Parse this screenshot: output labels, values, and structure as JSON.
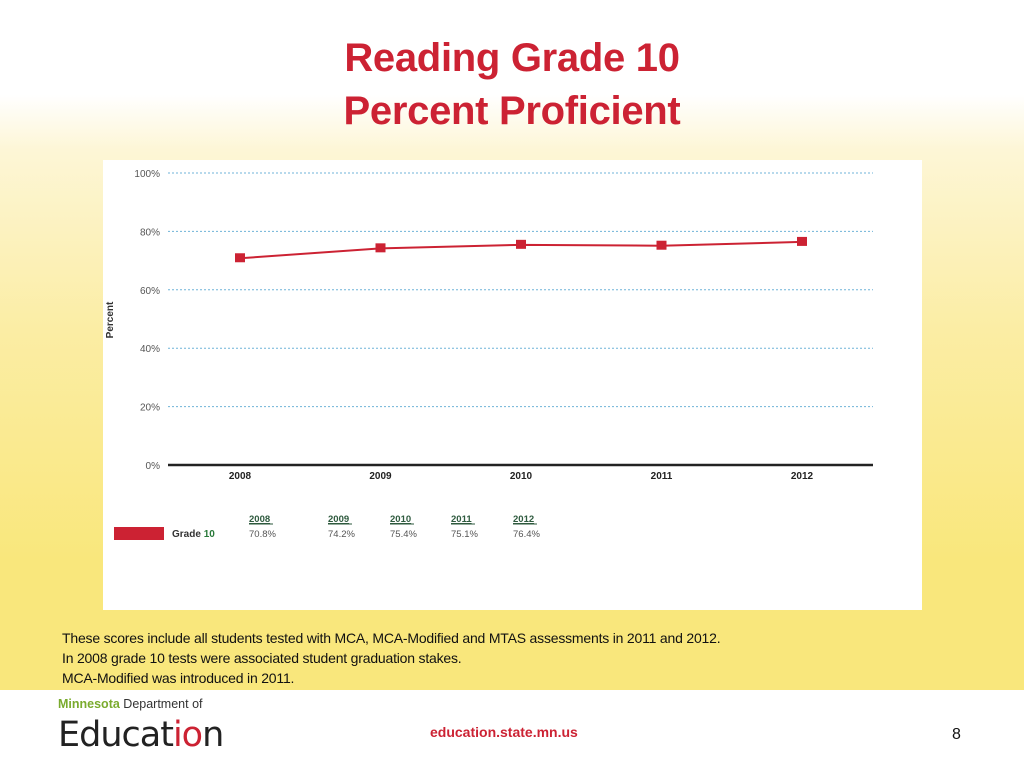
{
  "slide": {
    "title_line1": "Reading Grade 10",
    "title_line2": "Percent Proficient",
    "notes": [
      "These scores include all students tested with MCA, MCA-Modified and MTAS assessments in 2011 and 2012.",
      "In 2008 grade 10 tests were associated student graduation stakes.",
      "MCA-Modified was introduced in 2011."
    ],
    "colors": {
      "title": "#cc2233",
      "series": "#cc2233",
      "gridline": "#6fb3d8",
      "background_yellow": "#f9e77c"
    }
  },
  "footer": {
    "logo_top_bold": "Minnesota",
    "logo_top_rest": " Department of",
    "logo_main_a": "Educat",
    "logo_main_b": "io",
    "logo_main_c": "n",
    "url": "education.state.mn.us",
    "page_number": "8"
  },
  "chart_data": {
    "type": "line",
    "title": "Reading Grade 10 Percent Proficient",
    "xlabel": "",
    "ylabel": "Percent",
    "categories": [
      "2008",
      "2009",
      "2010",
      "2011",
      "2012"
    ],
    "series": [
      {
        "name": "Grade 10",
        "values": [
          70.8,
          74.2,
          75.4,
          75.1,
          76.4
        ],
        "color": "#cc2233",
        "marker": "square"
      }
    ],
    "ylim": [
      0,
      100
    ],
    "yticks": [
      "0%",
      "20%",
      "40%",
      "60%",
      "80%",
      "100%"
    ],
    "grid": true,
    "legend": {
      "position": "bottom",
      "label_prefix": "Grade",
      "label_number": "10",
      "years": [
        "2008",
        "2009",
        "2010",
        "2011",
        "2012"
      ],
      "values": [
        "70.8%",
        "74.2%",
        "75.4%",
        "75.1%",
        "76.4%"
      ]
    }
  }
}
